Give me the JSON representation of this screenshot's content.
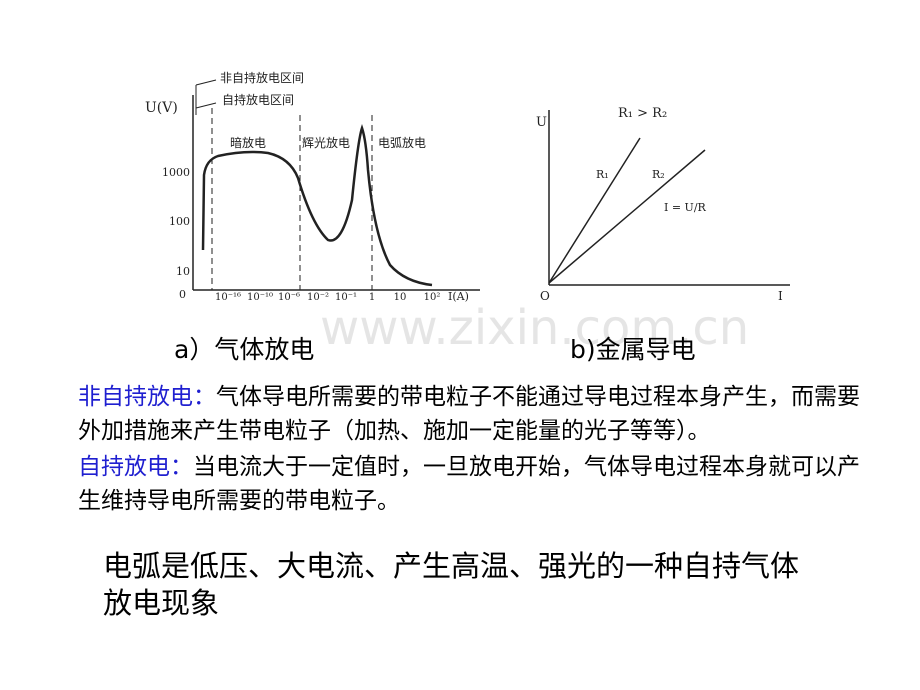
{
  "figure_a": {
    "y_axis_label": "U(V)",
    "y_ticks": [
      "1000",
      "100",
      "10",
      "0"
    ],
    "x_ticks": [
      "10⁻¹⁶",
      "10⁻¹⁰",
      "10⁻⁶",
      "10⁻²",
      "10⁻¹",
      "1",
      "10",
      "10²"
    ],
    "x_axis_label": "I(A)",
    "annotations": [
      "非自持放电区间",
      "自持放电区间"
    ],
    "regions": [
      "暗放电",
      "辉光放电",
      "电弧放电"
    ],
    "caption": "a）气体放电"
  },
  "figure_b": {
    "y_axis_label": "U",
    "relation": "R₁ > R₂",
    "line_labels": [
      "R₁",
      "R₂"
    ],
    "formula": "I = U/R",
    "origin": "O",
    "x_axis_label": "I",
    "caption": "b)金属导电"
  },
  "watermark": "www.zixin.com.cn",
  "definitions": [
    {
      "term": "非自持放电：",
      "text": "气体导电所需要的带电粒子不能通过导电过程本身产生，而需要外加措施来产生带电粒子（加热、施加一定能量的光子等等）。"
    },
    {
      "term": "自持放电：",
      "text": "当电流大于一定值时，一旦放电开始，气体导电过程本身就可以产生维持导电所需要的带电粒子。"
    }
  ],
  "conclusion": "电弧是低压、大电流、产生高温、强光的一种自持气体放电现象"
}
